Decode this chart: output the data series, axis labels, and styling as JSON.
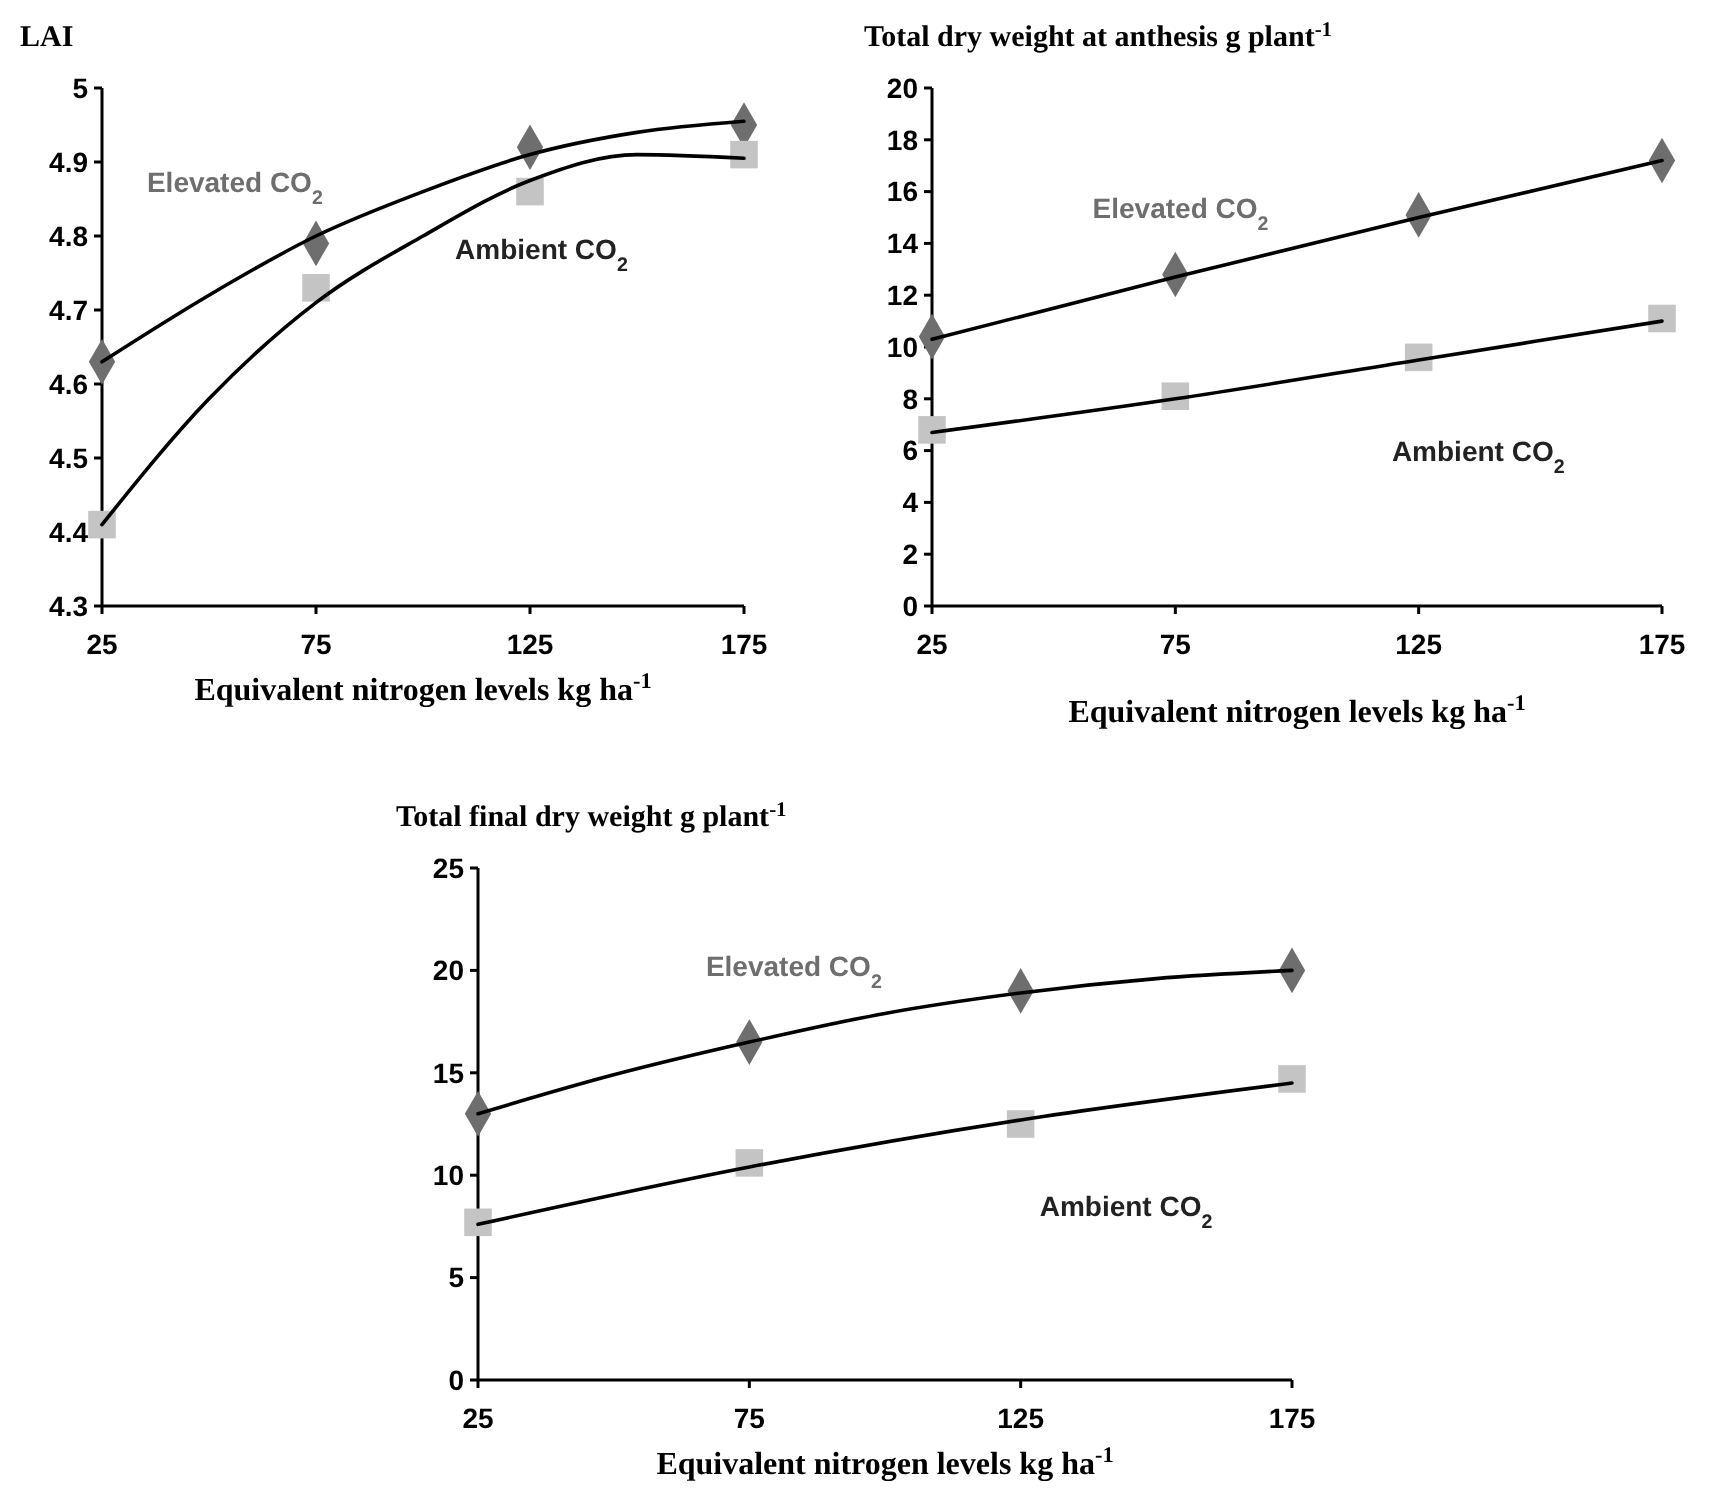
{
  "chart_data": [
    {
      "type": "scatter",
      "ylabel": "LAI",
      "xlabel": "Equivalent nitrogen levels kg ha$^{-1}$",
      "x": [
        25,
        75,
        125,
        175
      ],
      "xlim": [
        25,
        175
      ],
      "xticks": [
        25,
        75,
        125,
        175
      ],
      "ylim": [
        4.3,
        5
      ],
      "yticks": [
        4.3,
        4.4,
        4.5,
        4.6,
        4.7,
        4.8,
        4.9,
        5
      ],
      "grid": false,
      "series": [
        {
          "name": "Elevated CO$_{2}$",
          "marker": "diamond",
          "color": "#6e6e6e",
          "values": [
            4.63,
            4.79,
            4.92,
            4.95
          ]
        },
        {
          "name": "Ambient CO$_{2}$",
          "marker": "square",
          "color": "#c4c4c4",
          "values": [
            4.41,
            4.73,
            4.86,
            4.91
          ]
        },
        {
          "type": "line",
          "color": "#000000",
          "line_style": "solid",
          "x": [
            25,
            50,
            75,
            100,
            125,
            150,
            175
          ],
          "values": [
            4.63,
            4.72,
            4.8,
            4.86,
            4.91,
            4.94,
            4.955
          ]
        },
        {
          "type": "line",
          "color": "#000000",
          "line_style": "solid",
          "x": [
            25,
            50,
            75,
            100,
            125,
            150,
            175
          ],
          "values": [
            4.41,
            4.58,
            4.71,
            4.8,
            4.875,
            4.91,
            4.905
          ]
        }
      ]
    },
    {
      "type": "scatter",
      "ylabel": "Total  dry weight at anthesis g plant$^{-1}$",
      "xlabel": "Equivalent nitrogen levels kg ha$^{-1}$",
      "x": [
        25,
        75,
        125,
        175
      ],
      "xlim": [
        25,
        175
      ],
      "xticks": [
        25,
        75,
        125,
        175
      ],
      "ylim": [
        0,
        20
      ],
      "yticks": [
        0,
        2,
        4,
        6,
        8,
        10,
        12,
        14,
        16,
        18,
        20
      ],
      "grid": false,
      "series": [
        {
          "name": "Elevated CO$_{2}$",
          "marker": "diamond",
          "color": "#6e6e6e",
          "values": [
            10.4,
            12.8,
            15.1,
            17.2
          ]
        },
        {
          "name": "Ambient CO$_{2}$",
          "marker": "square",
          "color": "#c4c4c4",
          "values": [
            6.8,
            8.1,
            9.6,
            11.1
          ]
        },
        {
          "type": "line",
          "color": "#000000",
          "line_style": "solid",
          "x": [
            25,
            75,
            125,
            175
          ],
          "values": [
            10.3,
            12.7,
            15.0,
            17.2
          ]
        },
        {
          "type": "line",
          "color": "#000000",
          "line_style": "solid",
          "x": [
            25,
            75,
            125,
            175
          ],
          "values": [
            6.7,
            8.0,
            9.5,
            11.0
          ]
        }
      ]
    },
    {
      "type": "scatter",
      "ylabel": "Total final dry weight g plant$^{-1}$",
      "xlabel": "Equivalent nitrogen levels kg ha$^{-1}$",
      "x": [
        25,
        75,
        125,
        175
      ],
      "xlim": [
        25,
        175
      ],
      "xticks": [
        25,
        75,
        125,
        175
      ],
      "ylim": [
        0,
        25
      ],
      "yticks": [
        0,
        5,
        10,
        15,
        20,
        25
      ],
      "grid": false,
      "series": [
        {
          "name": "Elevated CO$_{2}$",
          "marker": "diamond",
          "color": "#6e6e6e",
          "values": [
            13.0,
            16.5,
            19.0,
            20.0
          ]
        },
        {
          "name": "Ambient CO$_{2}$",
          "marker": "square",
          "color": "#c4c4c4",
          "values": [
            7.7,
            10.6,
            12.5,
            14.7
          ]
        },
        {
          "type": "line",
          "color": "#000000",
          "line_style": "solid",
          "x": [
            25,
            50,
            75,
            100,
            125,
            150,
            175
          ],
          "values": [
            13.0,
            14.9,
            16.5,
            17.9,
            18.9,
            19.6,
            20.0
          ]
        },
        {
          "type": "line",
          "color": "#000000",
          "line_style": "solid",
          "x": [
            25,
            75,
            125,
            175
          ],
          "values": [
            7.6,
            10.4,
            12.7,
            14.5
          ]
        }
      ]
    }
  ]
}
